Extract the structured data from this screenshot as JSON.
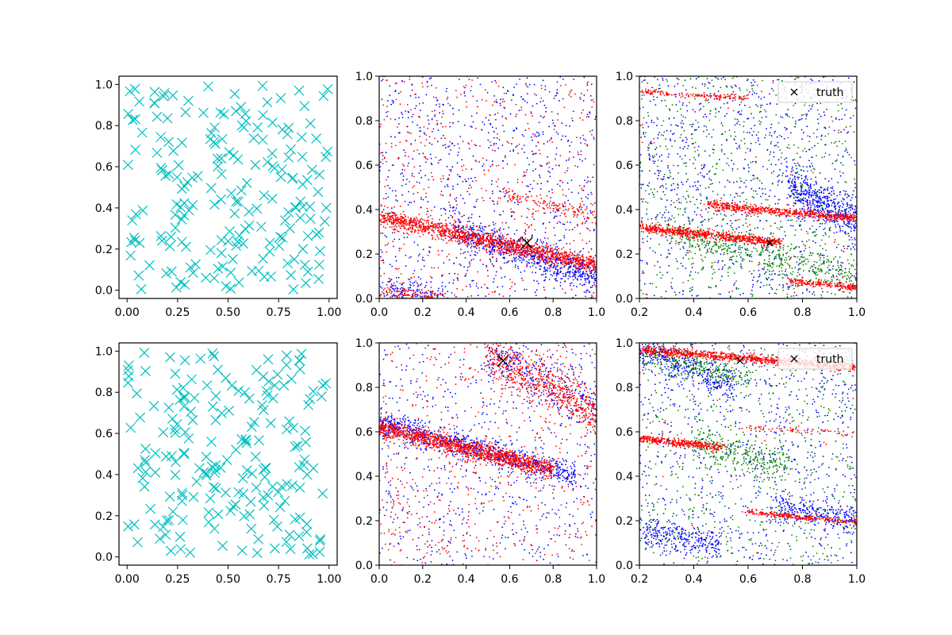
{
  "chart_data": [
    {
      "panel": "row1-col1",
      "type": "scatter",
      "title": "",
      "xlabel": "",
      "ylabel": "",
      "xlim": [
        -0.04,
        1.04
      ],
      "ylim": [
        -0.04,
        1.04
      ],
      "xticks": [
        "0.00",
        "0.25",
        "0.50",
        "0.75",
        "1.00"
      ],
      "yticks": [
        "0.0",
        "0.2",
        "0.4",
        "0.6",
        "0.8",
        "1.0"
      ],
      "grid": false,
      "series": [
        {
          "marker": "x",
          "color": "#00bfbf",
          "description_of_distribution": "uniform random",
          "count": 200,
          "seed": 11,
          "kind": "uniform"
        }
      ]
    },
    {
      "panel": "row1-col2",
      "type": "scatter",
      "title": "",
      "xlabel": "",
      "ylabel": "",
      "xlim": [
        0,
        1
      ],
      "ylim": [
        0,
        1
      ],
      "xticks": [
        "0.0",
        "0.2",
        "0.4",
        "0.6",
        "0.8",
        "1.0"
      ],
      "yticks": [
        "0.0",
        "0.2",
        "0.4",
        "0.6",
        "0.8",
        "1.0"
      ],
      "grid": false,
      "truth_point": {
        "x": 0.68,
        "y": 0.25
      },
      "series": [
        {
          "color": "#0000ff",
          "bands": [
            {
              "x0": 0.35,
              "x1": 1.0,
              "y0": 0.3,
              "y1": 0.1,
              "spread": 0.035,
              "count": 700
            },
            {
              "x0": 0.0,
              "x1": 0.3,
              "y0": 0.05,
              "y1": 0.0,
              "spread": 0.03,
              "count": 150
            }
          ],
          "noise": 850
        },
        {
          "color": "#ff0000",
          "bands": [
            {
              "x0": 0.0,
              "x1": 1.0,
              "y0": 0.37,
              "y1": 0.15,
              "spread": 0.02,
              "count": 1400
            },
            {
              "x0": 0.55,
              "x1": 1.0,
              "y0": 0.47,
              "y1": 0.37,
              "spread": 0.02,
              "count": 150
            },
            {
              "x0": 0.0,
              "x1": 0.3,
              "y0": 0.03,
              "y1": 0.0,
              "spread": 0.015,
              "count": 120
            }
          ],
          "noise": 500
        }
      ]
    },
    {
      "panel": "row1-col3",
      "type": "scatter",
      "title": "",
      "xlabel": "",
      "ylabel": "",
      "xlim": [
        0.2,
        1.0
      ],
      "ylim": [
        0,
        1
      ],
      "xticks": [
        "0.2",
        "0.4",
        "0.6",
        "0.8",
        "1.0"
      ],
      "yticks": [
        "0.0",
        "0.2",
        "0.4",
        "0.6",
        "0.8",
        "1.0"
      ],
      "grid": false,
      "truth_point": {
        "x": 0.68,
        "y": 0.25
      },
      "legend": {
        "label": "truth",
        "location": "top-right"
      },
      "series": [
        {
          "color": "#0000ff",
          "bands": [
            {
              "x0": 0.75,
              "x1": 1.0,
              "y0": 0.5,
              "y1": 0.35,
              "spread": 0.05,
              "count": 500
            }
          ],
          "noise": 900
        },
        {
          "color": "#008000",
          "bands": [
            {
              "x0": 0.3,
              "x1": 1.0,
              "y0": 0.3,
              "y1": 0.1,
              "spread": 0.04,
              "count": 500
            }
          ],
          "noise": 700
        },
        {
          "color": "#ff0000",
          "bands": [
            {
              "x0": 0.2,
              "x1": 0.72,
              "y0": 0.32,
              "y1": 0.25,
              "spread": 0.01,
              "count": 700
            },
            {
              "x0": 0.45,
              "x1": 1.0,
              "y0": 0.42,
              "y1": 0.36,
              "spread": 0.01,
              "count": 600
            },
            {
              "x0": 0.2,
              "x1": 0.6,
              "y0": 0.93,
              "y1": 0.9,
              "spread": 0.006,
              "count": 150
            },
            {
              "x0": 0.75,
              "x1": 1.0,
              "y0": 0.08,
              "y1": 0.05,
              "spread": 0.008,
              "count": 200
            }
          ],
          "noise": 60
        }
      ]
    },
    {
      "panel": "row2-col1",
      "type": "scatter",
      "title": "",
      "xlabel": "",
      "ylabel": "",
      "xlim": [
        -0.04,
        1.04
      ],
      "ylim": [
        -0.04,
        1.04
      ],
      "xticks": [
        "0.00",
        "0.25",
        "0.50",
        "0.75",
        "1.00"
      ],
      "yticks": [
        "0.0",
        "0.2",
        "0.4",
        "0.6",
        "0.8",
        "1.0"
      ],
      "grid": false,
      "series": [
        {
          "marker": "x",
          "color": "#00bfbf",
          "count": 200,
          "seed": 29,
          "kind": "uniform"
        }
      ]
    },
    {
      "panel": "row2-col2",
      "type": "scatter",
      "title": "",
      "xlabel": "",
      "ylabel": "",
      "xlim": [
        0,
        1
      ],
      "ylim": [
        0,
        1
      ],
      "xticks": [
        "0.0",
        "0.2",
        "0.4",
        "0.6",
        "0.8",
        "1.0"
      ],
      "yticks": [
        "0.0",
        "0.2",
        "0.4",
        "0.6",
        "0.8",
        "1.0"
      ],
      "grid": false,
      "truth_point": {
        "x": 0.57,
        "y": 0.92
      },
      "series": [
        {
          "color": "#0000ff",
          "bands": [
            {
              "x0": 0.0,
              "x1": 0.9,
              "y0": 0.64,
              "y1": 0.4,
              "spread": 0.03,
              "count": 800
            },
            {
              "x0": 0.5,
              "x1": 1.0,
              "y0": 0.95,
              "y1": 0.7,
              "spread": 0.06,
              "count": 250
            }
          ],
          "noise": 650
        },
        {
          "color": "#ff0000",
          "bands": [
            {
              "x0": 0.0,
              "x1": 0.8,
              "y0": 0.62,
              "y1": 0.43,
              "spread": 0.02,
              "count": 1300
            },
            {
              "x0": 0.5,
              "x1": 1.0,
              "y0": 0.95,
              "y1": 0.68,
              "spread": 0.05,
              "count": 600
            }
          ],
          "noise": 550
        }
      ]
    },
    {
      "panel": "row2-col3",
      "type": "scatter",
      "title": "",
      "xlabel": "",
      "ylabel": "",
      "xlim": [
        0.2,
        1.0
      ],
      "ylim": [
        0,
        1
      ],
      "xticks": [
        "0.2",
        "0.4",
        "0.6",
        "0.8",
        "1.0"
      ],
      "yticks": [
        "0.0",
        "0.2",
        "0.4",
        "0.6",
        "0.8",
        "1.0"
      ],
      "grid": false,
      "truth_point": {
        "x": 0.57,
        "y": 0.92
      },
      "legend": {
        "label": "truth",
        "location": "top-right"
      },
      "series": [
        {
          "color": "#0000ff",
          "bands": [
            {
              "x0": 0.2,
              "x1": 0.55,
              "y0": 0.97,
              "y1": 0.8,
              "spread": 0.04,
              "count": 350
            },
            {
              "x0": 0.2,
              "x1": 0.5,
              "y0": 0.16,
              "y1": 0.1,
              "spread": 0.03,
              "count": 250
            },
            {
              "x0": 0.7,
              "x1": 1.0,
              "y0": 0.27,
              "y1": 0.2,
              "spread": 0.03,
              "count": 250
            }
          ],
          "noise": 800
        },
        {
          "color": "#008000",
          "bands": [
            {
              "x0": 0.2,
              "x1": 0.6,
              "y0": 0.95,
              "y1": 0.85,
              "spread": 0.03,
              "count": 250
            },
            {
              "x0": 0.4,
              "x1": 0.75,
              "y0": 0.55,
              "y1": 0.45,
              "spread": 0.04,
              "count": 300
            }
          ],
          "noise": 600
        },
        {
          "color": "#ff0000",
          "bands": [
            {
              "x0": 0.2,
              "x1": 1.0,
              "y0": 0.97,
              "y1": 0.89,
              "spread": 0.01,
              "count": 900
            },
            {
              "x0": 0.2,
              "x1": 0.5,
              "y0": 0.57,
              "y1": 0.53,
              "spread": 0.008,
              "count": 350
            },
            {
              "x0": 0.6,
              "x1": 1.0,
              "y0": 0.62,
              "y1": 0.59,
              "spread": 0.006,
              "count": 60
            },
            {
              "x0": 0.6,
              "x1": 1.0,
              "y0": 0.24,
              "y1": 0.19,
              "spread": 0.006,
              "count": 250
            }
          ],
          "noise": 40
        }
      ]
    }
  ]
}
